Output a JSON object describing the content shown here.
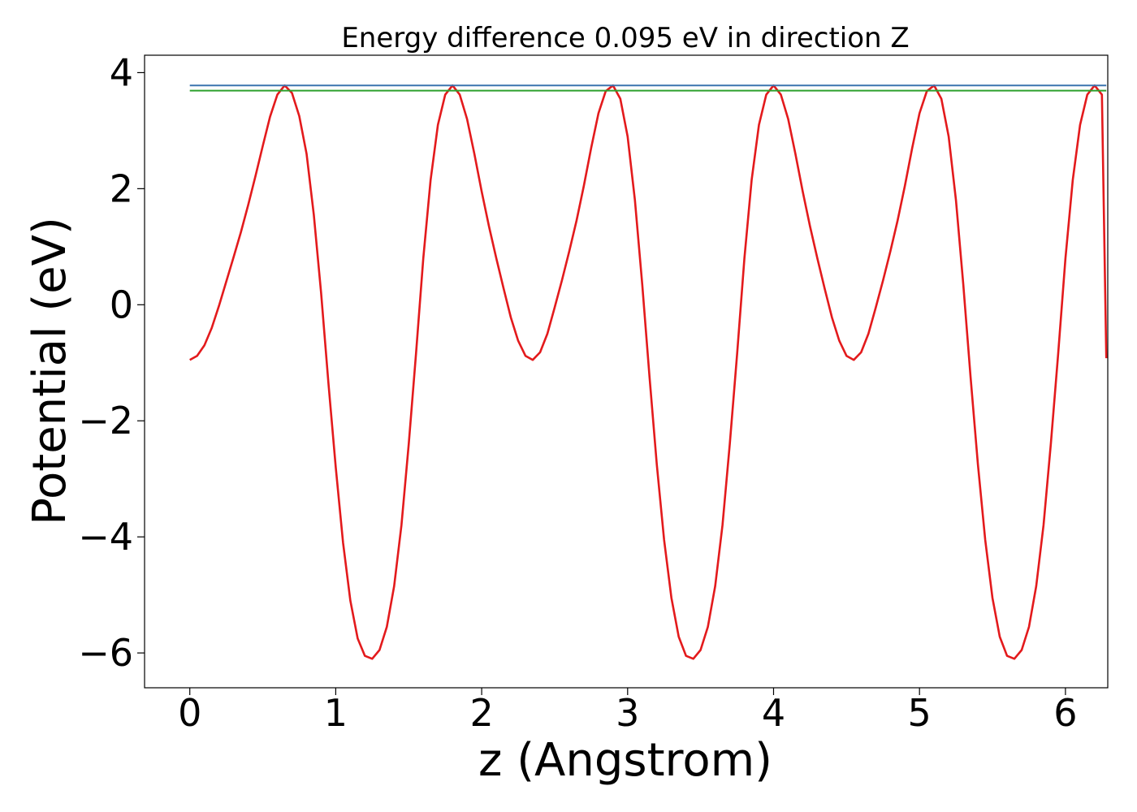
{
  "chart_data": {
    "type": "line",
    "title": "Energy difference 0.095 eV in direction Z",
    "xlabel": "z (Angstrom)",
    "ylabel": "Potential (eV)",
    "xlim": [
      -0.31,
      6.29
    ],
    "ylim": [
      -6.6,
      4.3
    ],
    "xticks": [
      0,
      1,
      2,
      3,
      4,
      5,
      6
    ],
    "yticks": [
      -6,
      -4,
      -2,
      0,
      2,
      4
    ],
    "grid": false,
    "series": [
      {
        "color": "#e31a1c",
        "x": [
          0.0,
          0.05,
          0.1,
          0.15,
          0.2,
          0.25,
          0.3,
          0.35,
          0.4,
          0.45,
          0.5,
          0.55,
          0.6,
          0.65,
          0.7,
          0.75,
          0.8,
          0.85,
          0.9,
          0.95,
          1.0,
          1.05,
          1.1,
          1.15,
          1.2,
          1.25,
          1.3,
          1.35,
          1.4,
          1.45,
          1.5,
          1.55,
          1.6,
          1.65,
          1.7,
          1.75,
          1.8,
          1.85,
          1.9,
          1.95,
          2.0,
          2.05,
          2.1,
          2.15,
          2.2,
          2.25,
          2.3,
          2.35,
          2.4,
          2.45,
          2.5,
          2.55,
          2.6,
          2.65,
          2.7,
          2.75,
          2.8,
          2.85,
          2.9,
          2.95,
          3.0,
          3.05,
          3.1,
          3.15,
          3.2,
          3.25,
          3.3,
          3.35,
          3.4,
          3.45,
          3.5,
          3.55,
          3.6,
          3.65,
          3.7,
          3.75,
          3.8,
          3.85,
          3.9,
          3.95,
          4.0,
          4.05,
          4.1,
          4.15,
          4.2,
          4.25,
          4.3,
          4.35,
          4.4,
          4.45,
          4.5,
          4.55,
          4.6,
          4.65,
          4.7,
          4.75,
          4.8,
          4.85,
          4.9,
          4.95,
          5.0,
          5.05,
          5.1,
          5.15,
          5.2,
          5.25,
          5.3,
          5.35,
          5.4,
          5.45,
          5.5,
          5.55,
          5.6,
          5.65,
          5.7,
          5.75,
          5.8,
          5.85,
          5.9,
          5.95,
          6.0,
          6.05,
          6.1,
          6.15,
          6.2,
          6.25,
          6.28
        ],
        "y": [
          -0.95,
          -0.88,
          -0.7,
          -0.4,
          -0.02,
          0.4,
          0.82,
          1.25,
          1.72,
          2.22,
          2.74,
          3.24,
          3.62,
          3.78,
          3.65,
          3.25,
          2.6,
          1.55,
          0.2,
          -1.35,
          -2.8,
          -4.1,
          -5.1,
          -5.75,
          -6.05,
          -6.1,
          -5.95,
          -5.55,
          -4.85,
          -3.8,
          -2.4,
          -0.85,
          0.8,
          2.15,
          3.1,
          3.62,
          3.78,
          3.62,
          3.2,
          2.6,
          1.95,
          1.35,
          0.8,
          0.28,
          -0.22,
          -0.62,
          -0.88,
          -0.95,
          -0.82,
          -0.5,
          -0.05,
          0.42,
          0.92,
          1.45,
          2.05,
          2.7,
          3.3,
          3.68,
          3.78,
          3.55,
          2.9,
          1.8,
          0.35,
          -1.25,
          -2.75,
          -4.05,
          -5.05,
          -5.72,
          -6.05,
          -6.1,
          -5.95,
          -5.55,
          -4.85,
          -3.8,
          -2.4,
          -0.85,
          0.8,
          2.15,
          3.1,
          3.62,
          3.78,
          3.62,
          3.2,
          2.6,
          1.95,
          1.35,
          0.8,
          0.28,
          -0.22,
          -0.62,
          -0.88,
          -0.95,
          -0.82,
          -0.5,
          -0.05,
          0.42,
          0.92,
          1.45,
          2.05,
          2.7,
          3.3,
          3.68,
          3.78,
          3.55,
          2.9,
          1.8,
          0.35,
          -1.25,
          -2.75,
          -4.05,
          -5.05,
          -5.72,
          -6.05,
          -6.1,
          -5.95,
          -5.55,
          -4.85,
          -3.8,
          -2.4,
          -0.85,
          0.8,
          2.15,
          3.1,
          3.62,
          3.78,
          3.62,
          -0.92
        ]
      },
      {
        "color": "#3b75af",
        "x": [
          0.0,
          6.28
        ],
        "y": [
          3.78,
          3.78
        ]
      },
      {
        "color": "#2ca02c",
        "x": [
          0.0,
          6.28
        ],
        "y": [
          3.69,
          3.69
        ]
      }
    ]
  }
}
